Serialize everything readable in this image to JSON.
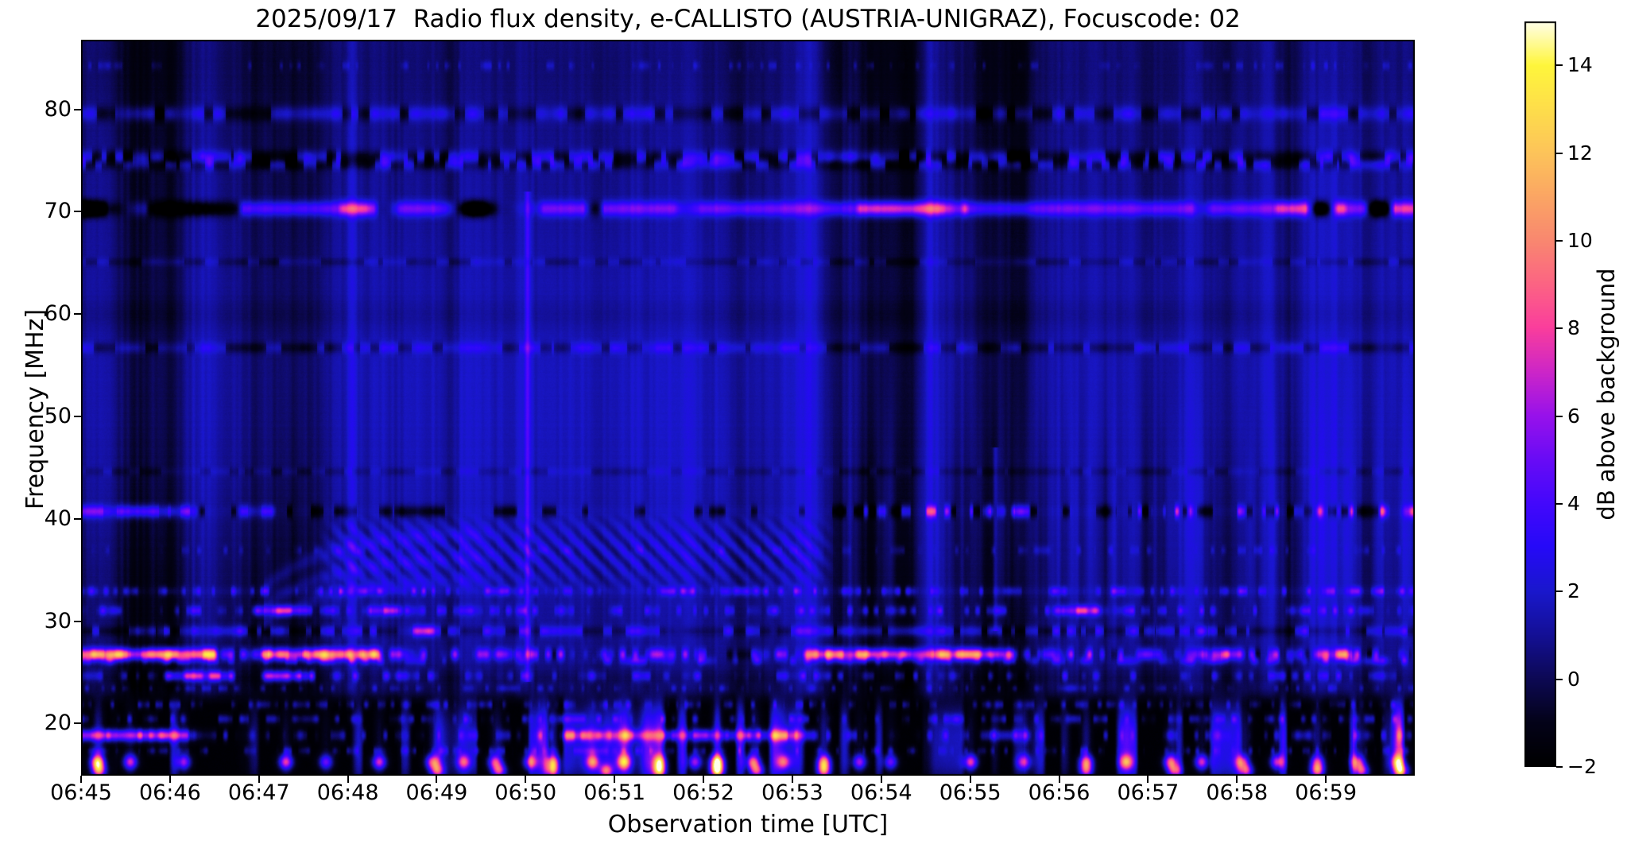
{
  "figure": {
    "background": "#ffffff",
    "text_color": "#000000"
  },
  "chart_data": {
    "type": "heatmap",
    "title": "2025/09/17  Radio flux density, e-CALLISTO (AUSTRIA-UNIGRAZ), Focuscode: 02",
    "xlabel": "Observation time [UTC]",
    "ylabel": "Frequency [MHz]",
    "x_ticks": [
      "06:45",
      "06:46",
      "06:47",
      "06:48",
      "06:49",
      "06:50",
      "06:51",
      "06:52",
      "06:53",
      "06:54",
      "06:55",
      "06:56",
      "06:57",
      "06:58",
      "06:59"
    ],
    "y_ticks": [
      80,
      70,
      60,
      50,
      40,
      30,
      20
    ],
    "time_range_minutes": [
      0,
      15
    ],
    "freq_range_mhz": [
      14.9,
      86.8
    ],
    "grid": false,
    "colorbar": {
      "label": "dB above background",
      "ticks": [
        14,
        12,
        10,
        8,
        6,
        4,
        2,
        0,
        -2
      ],
      "vmin": -2,
      "vmax": 15
    },
    "colormap_stops": [
      [
        -2,
        0,
        0,
        0
      ],
      [
        -1,
        4,
        3,
        25
      ],
      [
        0,
        13,
        9,
        85
      ],
      [
        1,
        20,
        16,
        150
      ],
      [
        2,
        26,
        24,
        205
      ],
      [
        3,
        38,
        10,
        248
      ],
      [
        4,
        68,
        8,
        252
      ],
      [
        5,
        105,
        12,
        246
      ],
      [
        6,
        152,
        18,
        235
      ],
      [
        7,
        205,
        38,
        200
      ],
      [
        8,
        250,
        62,
        157
      ],
      [
        9,
        252,
        100,
        132
      ],
      [
        10,
        249,
        136,
        112
      ],
      [
        11,
        251,
        166,
        100
      ],
      [
        12,
        253,
        196,
        90
      ],
      [
        13,
        254,
        222,
        75
      ],
      [
        14,
        255,
        246,
        60
      ],
      [
        15,
        255,
        255,
        235
      ]
    ],
    "features": {
      "background": {
        "level": 0.72,
        "bump_amp": 0.85,
        "bump_freq": 52,
        "bump_sigma": 15,
        "top_dim": 0.25,
        "top_freq": 84,
        "top_sigma": 3
      },
      "center_wash": {
        "t0": 2.9,
        "t1": 8.4,
        "edge": 0.8,
        "amp": 0.3,
        "freq": 46,
        "sigma": 14
      },
      "left_dim": {
        "t1": 2.75,
        "amp": -0.45,
        "freq": 33,
        "sigma": 7
      },
      "column_noise": {
        "fine": [
          0.035,
          0.7
        ],
        "med": [
          0.16,
          1.1
        ],
        "broad": [
          0.7,
          0.9
        ]
      },
      "column_envelope": {
        "base": 0.55,
        "low_amp": 0.5,
        "low_freq": 39,
        "low_sigma": 14,
        "hi_amp": 0.35,
        "hi_freq": 74,
        "hi_sigma": 6
      },
      "dark_columns": [
        [
          0.68,
          0.28,
          -1.9
        ],
        [
          1.05,
          0.1,
          -1.0
        ],
        [
          2.05,
          0.28,
          -1.3
        ],
        [
          2.55,
          0.1,
          -0.8
        ],
        [
          4.15,
          0.08,
          -0.7
        ],
        [
          7.3,
          0.12,
          -0.8
        ],
        [
          8.5,
          0.12,
          -1.8
        ],
        [
          9.0,
          0.22,
          -2.0
        ],
        [
          9.3,
          0.1,
          -1.2
        ],
        [
          10.15,
          0.1,
          -1.3
        ],
        [
          10.5,
          0.18,
          -1.9
        ],
        [
          12.85,
          0.12,
          -1.3
        ],
        [
          13.6,
          0.08,
          -0.9
        ],
        [
          14.45,
          0.06,
          -0.7
        ]
      ],
      "bright_columns": [
        [
          3.05,
          0.05,
          0.8
        ],
        [
          8.2,
          0.08,
          1.2
        ],
        [
          9.55,
          0.05,
          0.9
        ],
        [
          13.35,
          0.05,
          0.8
        ]
      ],
      "vlines": [
        [
          5.02,
          0.022,
          2.6,
          24,
          72
        ],
        [
          10.28,
          0.022,
          2.2,
          29,
          47
        ]
      ],
      "right_stripes": {
        "t_start": 8.45,
        "amp": 1.5,
        "freq": 38,
        "sigma": 8,
        "period": 0.09
      },
      "ripple": {
        "t0": 2.65,
        "t1": 8.5,
        "f0": 32.6,
        "f1": 40.6,
        "pt": 0.215,
        "pf": 1.95,
        "amp": 1.15,
        "lift": 0.45
      },
      "arcs": {
        "t0": 2.05,
        "t1": 4.8,
        "tau": 0.75,
        "amp": 1.1,
        "sigma": 0.55,
        "levels": [
          [
            38.7,
            5.5
          ],
          [
            36.3,
            5.0
          ],
          [
            34.2,
            4.5
          ]
        ]
      },
      "bottom": {
        "level": -1.75,
        "blend_f0": 21.5,
        "blend_f1": 23.8,
        "streak_period": 0.13,
        "streak_thresh": 0.55,
        "streak_gain": 5.5,
        "env_freq": 18.6,
        "env_sigma": 2.6,
        "env2_freq": 15.6,
        "env2_sigma": 1.2,
        "env2_amp": 0.35,
        "windows": [
          [
            0,
            1.3,
            0.9
          ],
          [
            1.3,
            3.6,
            0.7
          ],
          [
            3.6,
            8.5,
            1.35
          ],
          [
            8.5,
            10.6,
            0.9
          ],
          [
            10.6,
            14.3,
            1.2
          ],
          [
            14.3,
            15,
            1.5
          ]
        ],
        "dark_band": {
          "freq": 24.2,
          "sigma": 0.9,
          "depth": 0.75
        }
      },
      "rfi_lines": [
        {
          "f": 84.3,
          "sigma": 0.3,
          "speckle": {
            "period": 0.05,
            "thresh": 0.62,
            "amp": 1.2,
            "seed": 101
          }
        },
        {
          "f": 79.6,
          "sigma": 0.5,
          "dash": {
            "period": 0.11,
            "thresh": 0.42,
            "hi": 2.6,
            "lo": -1.9,
            "seed": 102
          }
        },
        {
          "f": 75.35,
          "sigma": 0.45,
          "dash": {
            "period": 0.085,
            "thresh": 0.45,
            "hi": 3.2,
            "lo": -2.1,
            "seed": 103
          }
        },
        {
          "f": 74.65,
          "sigma": 0.4,
          "dash": {
            "period": 0.09,
            "thresh": 0.5,
            "hi": 2.6,
            "lo": -1.8,
            "seed": 104
          }
        },
        {
          "f": 70.3,
          "sigma": 0.5,
          "base": 4.2,
          "segs": [
            [
              0.25,
              0.78,
              3.2
            ],
            [
              2.88,
              3.35,
              3.0
            ],
            [
              8.7,
              10.0,
              3.6
            ],
            [
              13.4,
              14.25,
              3.0
            ],
            [
              14.55,
              15.1,
              2.5
            ]
          ],
          "gapnoise": {
            "period": 0.34,
            "thresh": 0.64,
            "depth": -13,
            "seed": 105
          }
        },
        {
          "f": 65.1,
          "sigma": 0.3,
          "dash": {
            "period": 0.12,
            "thresh": 0.55,
            "hi": 0.9,
            "lo": -1.1,
            "seed": 106
          }
        },
        {
          "f": 59.9,
          "sigma": 1.1,
          "base": -0.45
        },
        {
          "f": 56.7,
          "sigma": 0.38,
          "dash": {
            "period": 0.1,
            "thresh": 0.5,
            "hi": 1.9,
            "lo": -1.6,
            "seed": 108
          }
        },
        {
          "f": 44.6,
          "sigma": 0.3,
          "dash": {
            "period": 0.1,
            "thresh": 0.62,
            "hi": 0.6,
            "lo": -0.9,
            "seed": 109
          }
        },
        {
          "f": 40.7,
          "sigma": 0.42,
          "dash": {
            "period": 0.09,
            "thresh": 0.38,
            "hi": 0.3,
            "lo": -2.6,
            "seed": 110
          },
          "segs": [
            [
              -0.1,
              1.35,
              4.5
            ],
            [
              1.75,
              2.2,
              3.5
            ]
          ],
          "speckle": {
            "period": 0.07,
            "thresh": 0.55,
            "amp": 5.5,
            "seed": 210,
            "t0": 8.55,
            "t1": 15.1
          }
        },
        {
          "f": 36.9,
          "sigma": 0.3,
          "speckle": {
            "period": 0.06,
            "thresh": 0.6,
            "amp": 1.2,
            "seed": 111
          }
        },
        {
          "f": 32.9,
          "sigma": 0.3,
          "base": 0.4,
          "speckle": {
            "period": 0.055,
            "thresh": 0.38,
            "amp": 3.0,
            "seed": 112
          }
        },
        {
          "f": 31.0,
          "sigma": 0.33,
          "speckle": {
            "period": 0.06,
            "thresh": 0.4,
            "amp": 2.8,
            "seed": 113
          },
          "segs": [
            [
              1.9,
              2.6,
              4.5
            ],
            [
              3.2,
              3.65,
              3.5
            ],
            [
              10.9,
              11.5,
              4.0
            ]
          ]
        },
        {
          "f": 29.0,
          "sigma": 0.35,
          "dash": {
            "period": 0.08,
            "thresh": 0.52,
            "hi": 3.2,
            "lo": -1.2,
            "seed": 114
          },
          "speckle": {
            "period": 0.3,
            "thresh": 0.8,
            "amp": 3.5,
            "seed": 214
          }
        },
        {
          "f": 26.72,
          "sigma": 0.4,
          "segs": [
            [
              -0.1,
              1.55,
              8.6
            ],
            [
              2.0,
              3.4,
              7.2
            ],
            [
              8.1,
              10.5,
              6.4
            ],
            [
              12.55,
              13.1,
              5.0
            ],
            [
              13.85,
              14.35,
              4.5
            ]
          ],
          "speckle": {
            "period": 0.07,
            "thresh": 0.3,
            "amp": 4.2,
            "seed": 115
          },
          "dash": {
            "period": 0.09,
            "thresh": 0.22,
            "hi": 0,
            "lo": -1.6,
            "seed": 215
          }
        },
        {
          "f": 26.1,
          "sigma": 0.3,
          "speckle": {
            "period": 0.08,
            "thresh": 0.45,
            "amp": 2.5,
            "seed": 116
          }
        },
        {
          "f": 24.6,
          "sigma": 0.35,
          "speckle": {
            "period": 0.07,
            "thresh": 0.42,
            "amp": 3.0,
            "seed": 117
          },
          "segs": [
            [
              0.9,
              1.75,
              4.2
            ],
            [
              2.0,
              2.65,
              4.5
            ]
          ]
        },
        {
          "f": 23.4,
          "sigma": 0.25,
          "speckle": {
            "period": 0.06,
            "thresh": 0.55,
            "amp": 1.6,
            "seed": 118
          }
        },
        {
          "f": 21.8,
          "sigma": 0.3,
          "speckle": {
            "period": 0.05,
            "thresh": 0.45,
            "amp": 2.4,
            "seed": 119
          }
        },
        {
          "f": 20.4,
          "sigma": 0.33,
          "speckle": {
            "period": 0.06,
            "thresh": 0.42,
            "amp": 2.6,
            "seed": 120
          }
        },
        {
          "f": 18.8,
          "sigma": 0.4,
          "speckle": {
            "period": 0.06,
            "thresh": 0.4,
            "amp": 2.8,
            "seed": 121
          },
          "segs": [
            [
              -0.1,
              1.25,
              7.5
            ],
            [
              5.4,
              8.3,
              4.6
            ],
            [
              10.2,
              10.7,
              3.5
            ]
          ]
        },
        {
          "f": 17.3,
          "sigma": 0.3,
          "speckle": {
            "period": 0.05,
            "thresh": 0.5,
            "amp": 2.0,
            "seed": 122
          }
        }
      ],
      "blob_rows": [
        {
          "freq": 16.2,
          "sigma": 0.5,
          "blobs": [
            [
              0.18,
              12.5
            ],
            [
              0.55,
              8
            ],
            [
              1.15,
              7
            ],
            [
              2.3,
              8.5
            ],
            [
              2.75,
              6
            ],
            [
              3.35,
              8
            ],
            [
              3.95,
              9
            ],
            [
              4.3,
              7
            ],
            [
              4.65,
              8
            ],
            [
              5.05,
              8
            ],
            [
              5.3,
              10
            ],
            [
              5.75,
              8
            ],
            [
              6.1,
              9
            ],
            [
              6.5,
              9
            ],
            [
              6.9,
              7
            ],
            [
              7.15,
              13.5
            ],
            [
              7.55,
              9
            ],
            [
              7.9,
              7
            ],
            [
              8.35,
              10
            ],
            [
              8.75,
              7
            ],
            [
              9.1,
              6
            ],
            [
              10.0,
              8.5
            ],
            [
              10.6,
              7
            ],
            [
              11.3,
              9
            ],
            [
              11.75,
              8
            ],
            [
              12.25,
              9
            ],
            [
              12.6,
              8
            ],
            [
              13.05,
              8
            ],
            [
              13.45,
              8
            ],
            [
              13.9,
              7
            ],
            [
              14.35,
              8
            ],
            [
              14.8,
              8
            ]
          ]
        },
        {
          "freq": 15.35,
          "sigma": 0.45,
          "blobs": [
            [
              0.2,
              9
            ],
            [
              4.0,
              7
            ],
            [
              4.7,
              8
            ],
            [
              5.3,
              9
            ],
            [
              5.9,
              8
            ],
            [
              6.5,
              9
            ],
            [
              7.15,
              12
            ],
            [
              7.6,
              8
            ],
            [
              8.35,
              9
            ],
            [
              11.3,
              7
            ],
            [
              12.3,
              8
            ],
            [
              13.1,
              8
            ],
            [
              13.9,
              9
            ],
            [
              14.4,
              8
            ],
            [
              14.85,
              9
            ]
          ]
        }
      ]
    }
  }
}
